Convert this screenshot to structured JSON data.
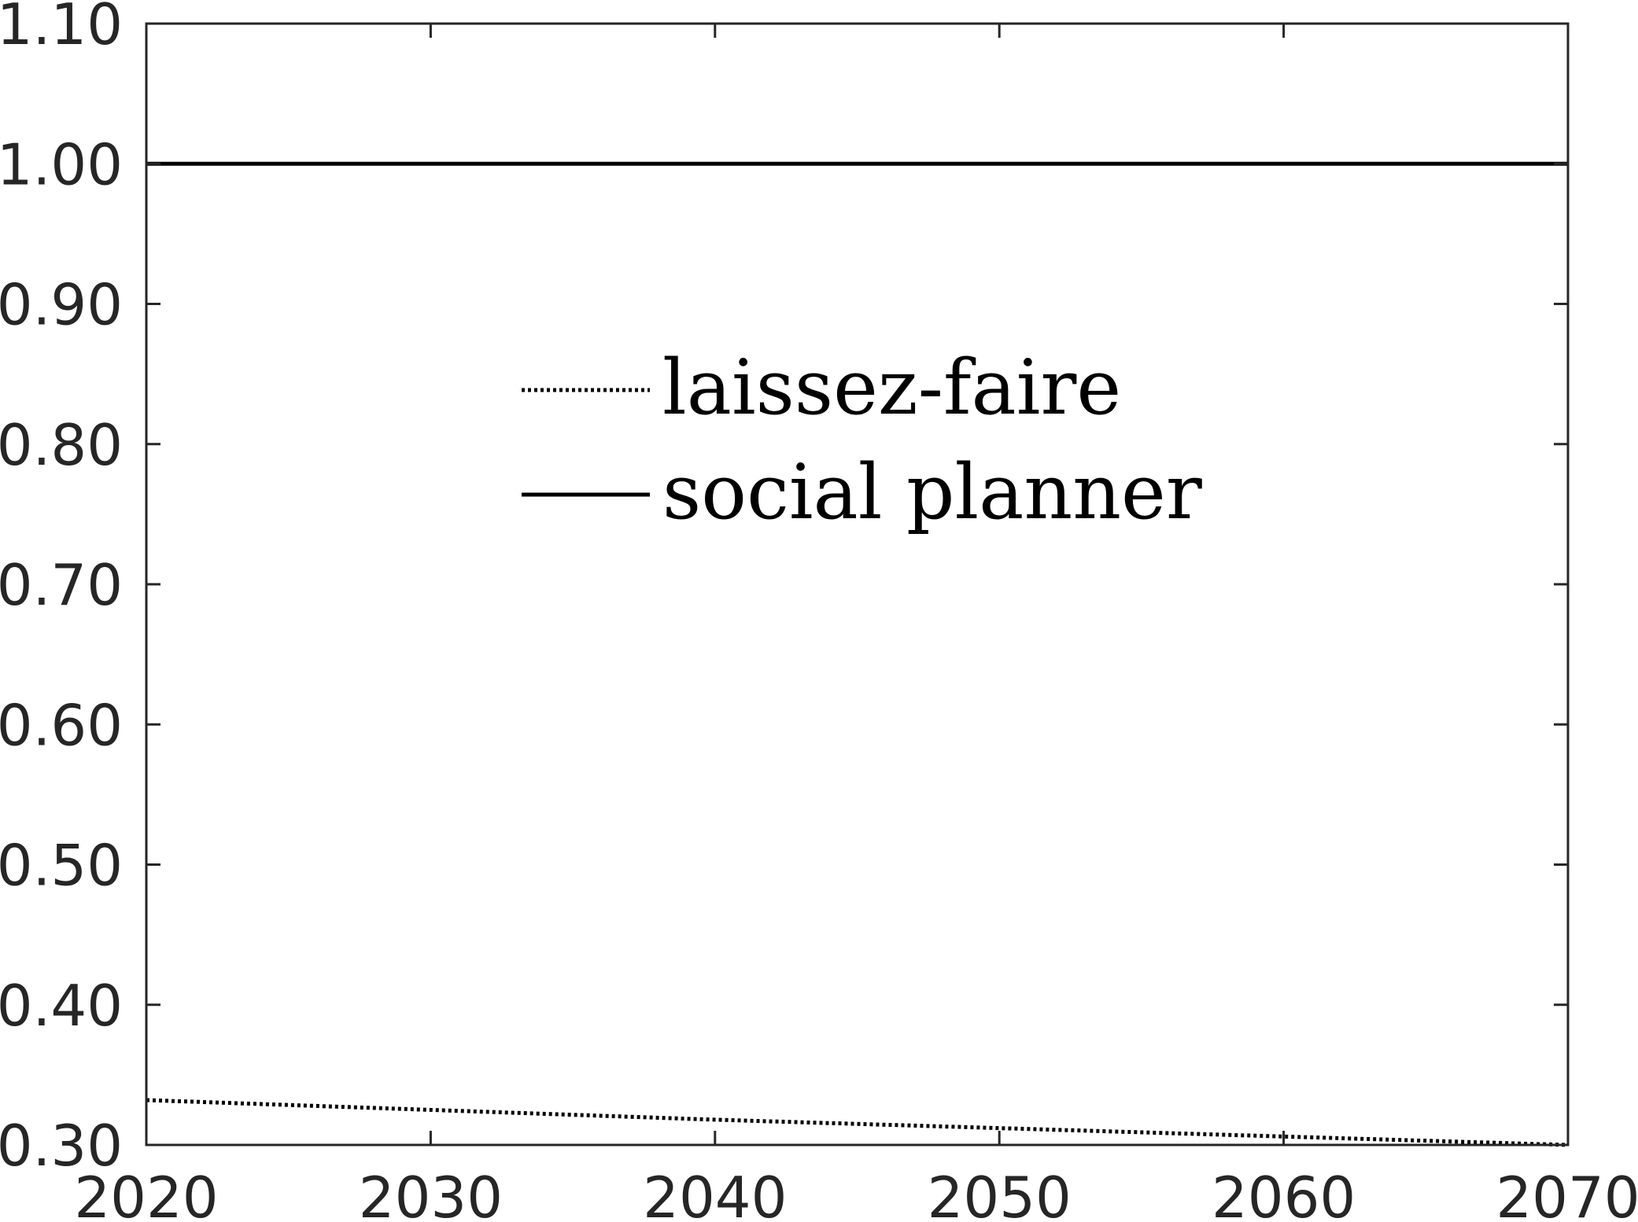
{
  "chart_data": {
    "type": "line",
    "title": "",
    "xlabel": "",
    "ylabel": "",
    "xlim": [
      2020,
      2070
    ],
    "ylim": [
      0.3,
      1.1
    ],
    "xticks": [
      "2020",
      "2030",
      "2040",
      "2050",
      "2060",
      "2070"
    ],
    "yticks": [
      "0.30",
      "0.40",
      "0.50",
      "0.60",
      "0.70",
      "0.80",
      "0.90",
      "1.00",
      "1.10"
    ],
    "grid": false,
    "legend_position": "upper-center",
    "series": [
      {
        "name": "laissez-faire",
        "style": "dotted",
        "color": "#000000",
        "x": [
          2020,
          2030,
          2040,
          2050,
          2060,
          2070
        ],
        "values": [
          0.332,
          0.325,
          0.318,
          0.312,
          0.306,
          0.3
        ]
      },
      {
        "name": "social planner",
        "style": "solid",
        "color": "#000000",
        "x": [
          2020,
          2030,
          2040,
          2050,
          2060,
          2070
        ],
        "values": [
          1.0,
          1.0,
          1.0,
          1.0,
          1.0,
          1.0
        ]
      }
    ]
  }
}
